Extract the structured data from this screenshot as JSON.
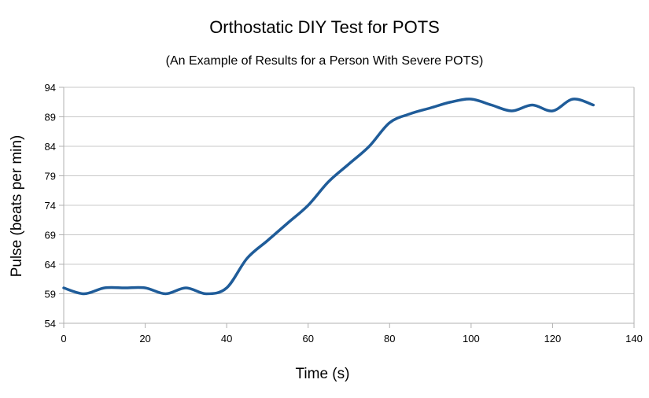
{
  "chart_data": {
    "type": "line",
    "title": "Orthostatic DIY Test for POTS",
    "subtitle": "(An Example of Results for a Person With Severe POTS)",
    "xlabel": "Time (s)",
    "ylabel": "Pulse (beats per min)",
    "xlim": [
      0,
      140
    ],
    "ylim": [
      54,
      94
    ],
    "xticks": [
      "0",
      "20",
      "40",
      "60",
      "80",
      "100",
      "120",
      "140"
    ],
    "yticks": [
      "54",
      "59",
      "64",
      "69",
      "74",
      "79",
      "84",
      "89",
      "94"
    ],
    "grid": "horizontal",
    "legend": "none",
    "line_color": "#1f5c99",
    "series": [
      {
        "x": [
          0,
          5,
          10,
          15,
          20,
          25,
          30,
          35,
          40,
          45,
          50,
          55,
          60,
          65,
          70,
          75,
          80,
          85,
          90,
          95,
          100,
          105,
          110,
          115,
          120,
          125,
          130
        ],
        "y": [
          60,
          59,
          60,
          60,
          60,
          59,
          60,
          59,
          60,
          65,
          68,
          71,
          74,
          78,
          81,
          84,
          88,
          89.5,
          90.5,
          91.5,
          92,
          91,
          90,
          91,
          90,
          92,
          91
        ]
      }
    ]
  }
}
